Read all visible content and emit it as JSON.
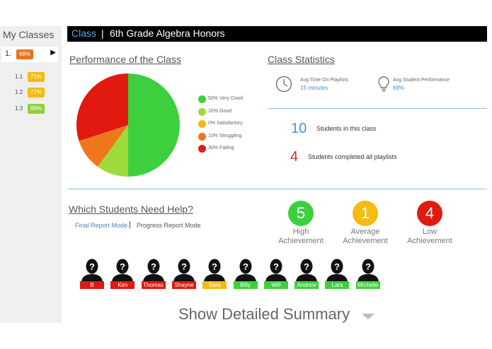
{
  "sidebar": {
    "title": "My Classes",
    "main_class": {
      "num": "1.",
      "percent": "68%",
      "color": "#e8721c"
    },
    "sub_items": [
      {
        "num": "1.1",
        "percent": "71%",
        "color": "#f4bb12"
      },
      {
        "num": "1.2",
        "percent": "77%",
        "color": "#f4bb12"
      },
      {
        "num": "1.3",
        "percent": "89%",
        "color": "#8fd13a"
      }
    ]
  },
  "header": {
    "class_label": "Class",
    "separator": "|",
    "class_name": "6th Grade Algebra Honors"
  },
  "performance": {
    "title": "Performance of the Class"
  },
  "chart_data": {
    "type": "pie",
    "slices": [
      {
        "label": "50% Very Good",
        "value": 50,
        "color": "#3ecf3e"
      },
      {
        "label": "10% Good",
        "value": 10,
        "color": "#9edb3a"
      },
      {
        "label": "0% Satisfactory",
        "value": 0,
        "color": "#f4bb12"
      },
      {
        "label": "10% Struggling",
        "value": 10,
        "color": "#f0761e"
      },
      {
        "label": "30% Failing",
        "value": 30,
        "color": "#e01a0e"
      }
    ]
  },
  "statistics": {
    "title": "Class Statistics",
    "time_label": "Avg Time On Playlists",
    "time_value": "15 minutes",
    "perf_label": "Avg Student Performance",
    "perf_value": "68%",
    "students_count": "10",
    "students_label": "Students in this class",
    "completed_count": "4",
    "completed_label": "Students completed all playlists"
  },
  "help": {
    "title": "Which Students Need Help?",
    "final_mode": "Final Report Mode",
    "separator": "|",
    "progress_mode": "Progress Report Mode"
  },
  "achievement": [
    {
      "count": "5",
      "line1": "High",
      "line2": "Achievement",
      "color": "#3ecf3e"
    },
    {
      "count": "1",
      "line1": "Average",
      "line2": "Achievement",
      "color": "#f4bb12"
    },
    {
      "count": "4",
      "line1": "Low",
      "line2": "Achievement",
      "color": "#e01a0e"
    }
  ],
  "students": [
    {
      "name": "B",
      "color": "#e01a0e"
    },
    {
      "name": "Kim",
      "color": "#e01a0e"
    },
    {
      "name": "Thomas",
      "color": "#e01a0e"
    },
    {
      "name": "Shayne",
      "color": "#e01a0e"
    },
    {
      "name": "Sara",
      "color": "#f4bb12"
    },
    {
      "name": "Billy",
      "color": "#3ecf3e"
    },
    {
      "name": "Will",
      "color": "#3ecf3e"
    },
    {
      "name": "Andrew",
      "color": "#3ecf3e"
    },
    {
      "name": "Lara",
      "color": "#3ecf3e"
    },
    {
      "name": "Michelle",
      "color": "#3ecf3e"
    }
  ],
  "summary": {
    "label": "Show Detailed Summary"
  }
}
